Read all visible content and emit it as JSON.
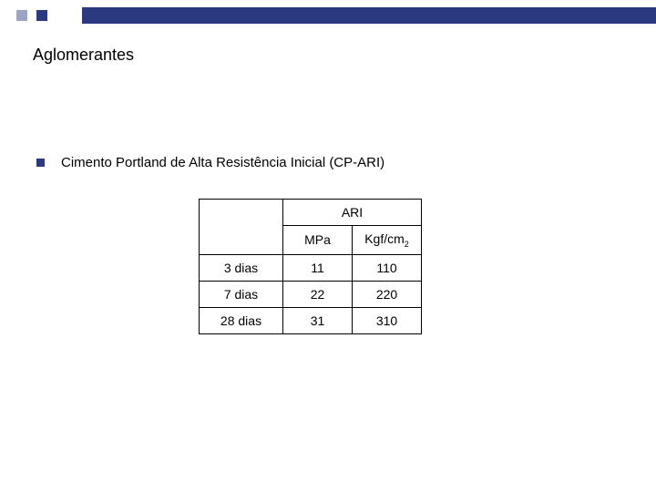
{
  "banner": {
    "square_color_1": "#9aa6c4",
    "square_color_2": "#2b3a80",
    "bar_color": "#2b3a80"
  },
  "title": "Aglomerantes",
  "bullet": {
    "color": "#2b3a80",
    "text": "Cimento Portland de Alta Resistência Inicial (CP-ARI)"
  },
  "table": {
    "header_group": "ARI",
    "unit1": "MPa",
    "unit2_base": "Kgf/cm",
    "unit2_sub": "2",
    "rows": [
      {
        "age": "3 dias",
        "mpa": "11",
        "kgfcm2": "110"
      },
      {
        "age": "7 dias",
        "mpa": "22",
        "kgfcm2": "220"
      },
      {
        "age": "28 dias",
        "mpa": "31",
        "kgfcm2": "310"
      }
    ]
  }
}
